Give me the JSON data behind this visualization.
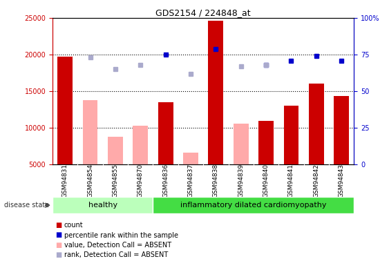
{
  "title": "GDS2154 / 224848_at",
  "samples": [
    "GSM94831",
    "GSM94854",
    "GSM94855",
    "GSM94870",
    "GSM94836",
    "GSM94837",
    "GSM94838",
    "GSM94839",
    "GSM94840",
    "GSM94841",
    "GSM94842",
    "GSM94843"
  ],
  "healthy_count": 4,
  "disease_label": "inflammatory dilated cardiomyopathy",
  "healthy_label": "healthy",
  "red_bars": [
    19700,
    null,
    null,
    null,
    13500,
    null,
    24600,
    null,
    11000,
    13000,
    16100,
    14400
  ],
  "pink_bars": [
    null,
    13800,
    8800,
    10300,
    null,
    6600,
    null,
    10600,
    null,
    null,
    null,
    null
  ],
  "blue_squares": [
    null,
    null,
    null,
    null,
    18700,
    null,
    20700,
    null,
    17900,
    18600,
    19300,
    18700
  ],
  "light_blue_squares": [
    null,
    19000,
    17000,
    17900,
    null,
    16100,
    null,
    17700,
    17900,
    null,
    null,
    null
  ],
  "ylim_left": [
    5000,
    25000
  ],
  "ylim_right": [
    0,
    100
  ],
  "yticks_left": [
    5000,
    10000,
    15000,
    20000,
    25000
  ],
  "yticks_right": [
    0,
    25,
    50,
    75,
    100
  ],
  "ytick_labels_left": [
    "5000",
    "10000",
    "15000",
    "20000",
    "25000"
  ],
  "ytick_labels_right": [
    "0",
    "25",
    "50",
    "75",
    "100%"
  ],
  "bar_width": 0.6,
  "red_color": "#cc0000",
  "pink_color": "#ffaaaa",
  "blue_color": "#0000cc",
  "light_blue_color": "#aaaacc",
  "healthy_bg": "#bbffbb",
  "disease_bg": "#44dd44",
  "sample_bg": "#cccccc",
  "grid_color": "black",
  "disease_state_label": "disease state"
}
